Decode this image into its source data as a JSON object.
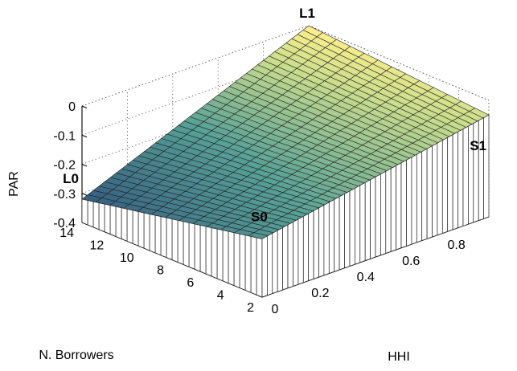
{
  "chart_data": {
    "type": "surface",
    "xlabel": "HHI",
    "ylabel": "N. Borrowers",
    "zlabel": "PAR",
    "xlim": [
      0,
      1
    ],
    "ylim": [
      2,
      14
    ],
    "zlim": [
      -0.4,
      0
    ],
    "x_ticks": [
      "0",
      "0.2",
      "0.4",
      "0.6",
      "0.8"
    ],
    "y_ticks": [
      "2",
      "4",
      "6",
      "8",
      "10",
      "12",
      "14"
    ],
    "z_ticks": [
      "-0.4",
      "-0.3",
      "-0.2",
      "-0.1",
      "0"
    ],
    "grid": true,
    "colormap": "parula-like (blue-green at low PAR to yellow at high PAR)",
    "corners": [
      {
        "label": "L0",
        "hhi": 0,
        "borrowers": 14,
        "par": -0.32
      },
      {
        "label": "L1",
        "hhi": 1,
        "borrowers": 14,
        "par": 0.0
      },
      {
        "label": "S0",
        "hhi": 0,
        "borrowers": 2,
        "par": -0.2
      },
      {
        "label": "S1",
        "hhi": 1,
        "borrowers": 2,
        "par": -0.05
      }
    ]
  }
}
